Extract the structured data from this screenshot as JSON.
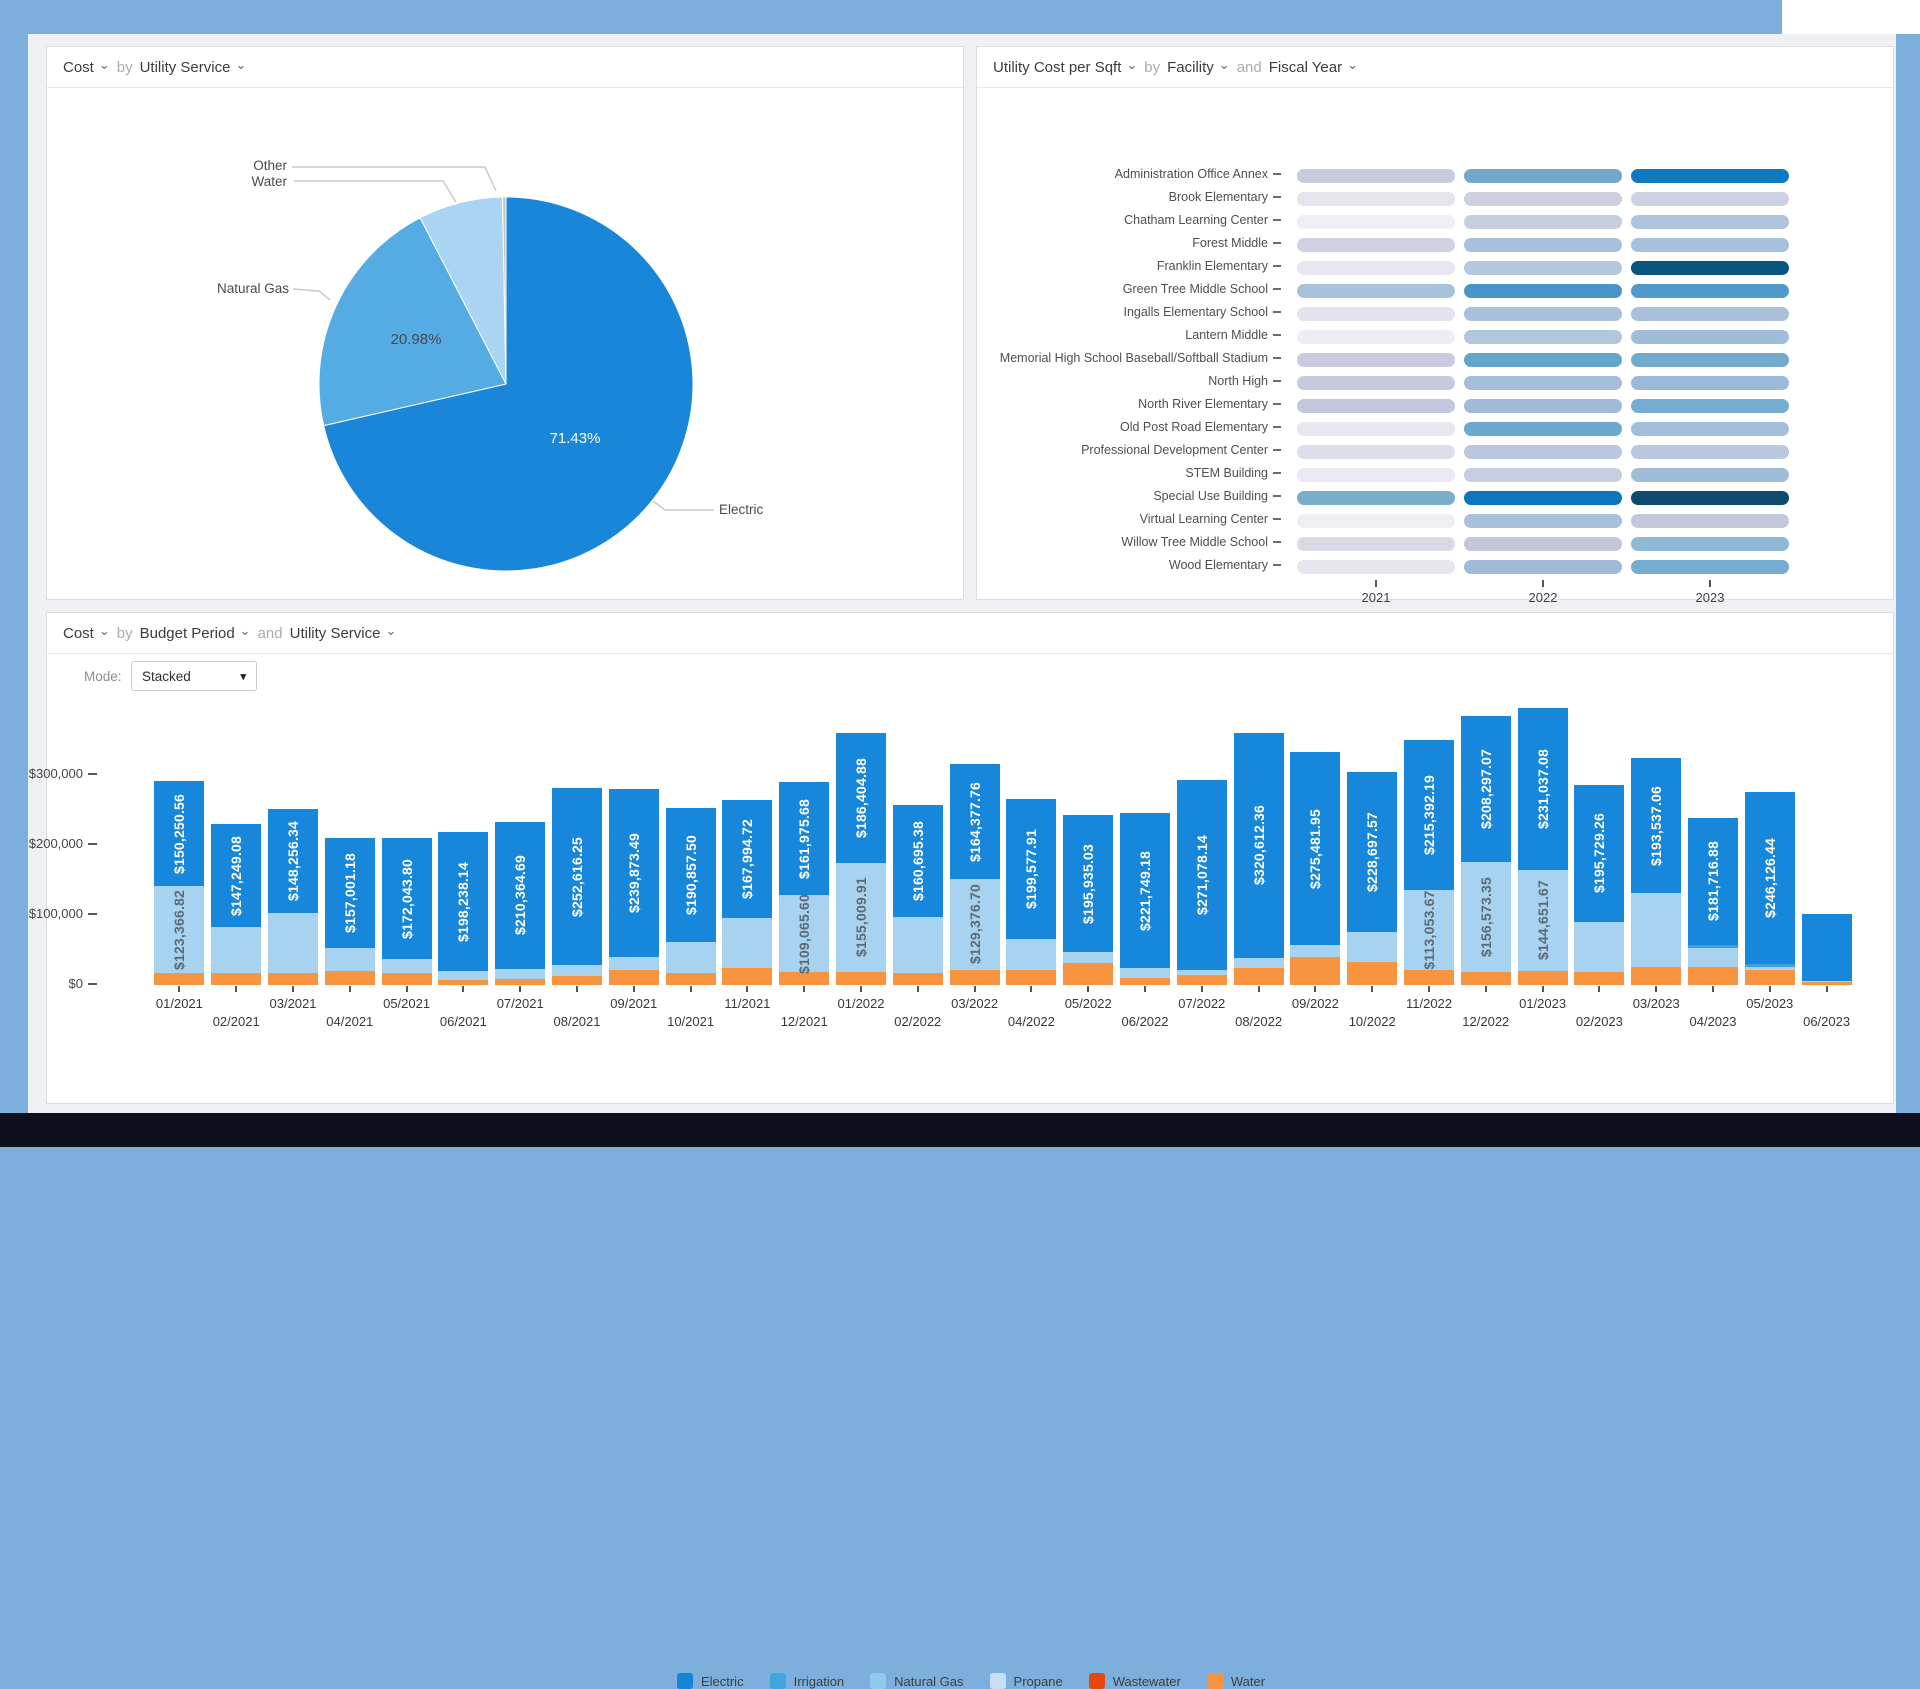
{
  "frame": {
    "background_color": "#7dafdc",
    "bottom_bar_color": "#0d0f1c"
  },
  "panel_pie": {
    "header": {
      "metric": "Cost",
      "by": "by",
      "dim": "Utility Service"
    },
    "labels": {
      "other": "Other",
      "water": "Water",
      "natural_gas": "Natural Gas",
      "electric": "Electric",
      "natural_gas_pct": "20.98%",
      "electric_pct": "71.43%"
    },
    "chart_data": {
      "type": "pie",
      "title": "Cost by Utility Service",
      "slices": [
        {
          "label": "Electric",
          "pct": 71.43,
          "pct_label": "71.43%",
          "color": "#1a86d9"
        },
        {
          "label": "Natural Gas",
          "pct": 20.98,
          "pct_label": "20.98%",
          "color": "#55abe4"
        },
        {
          "label": "Water",
          "pct": 7.29,
          "color": "#a9d5f3"
        },
        {
          "label": "Other",
          "pct": 0.3,
          "color": "#cbc5bc"
        }
      ],
      "start_angle_deg": 0,
      "direction": "clockwise"
    }
  },
  "panel_heatmap": {
    "header": {
      "metric": "Utility Cost per Sqft",
      "by": "by",
      "dim1": "Facility",
      "and": "and",
      "dim2": "Fiscal Year"
    },
    "chart_data": {
      "type": "heatmap",
      "columns": [
        "2021",
        "2022",
        "2023"
      ],
      "value_encoding": "color intensity (light lavender = low cost per sqft, dark blue = high)",
      "rows": [
        {
          "name": "Administration Office Annex",
          "colors": [
            "#c7cadd",
            "#6fa8c9",
            "#0f7ac2"
          ]
        },
        {
          "name": "Brook Elementary",
          "colors": [
            "#e3e4ee",
            "#ccd0e1",
            "#ccd1e3"
          ]
        },
        {
          "name": "Chatham Learning Center",
          "colors": [
            "#eeeef5",
            "#c5cedf",
            "#aec3dc"
          ]
        },
        {
          "name": "Forest Middle",
          "colors": [
            "#ced1e2",
            "#a7c0dc",
            "#a7c0dc"
          ]
        },
        {
          "name": "Franklin Elementary",
          "colors": [
            "#e7e7f1",
            "#b3c7de",
            "#0a5580"
          ]
        },
        {
          "name": "Green Tree Middle School",
          "colors": [
            "#a9c3dc",
            "#4896c9",
            "#4f9aca"
          ]
        },
        {
          "name": "Ingalls Elementary School",
          "colors": [
            "#e2e3ee",
            "#a8c0da",
            "#a8c0da"
          ]
        },
        {
          "name": "Lantern Middle",
          "colors": [
            "#ededf4",
            "#b0c6dd",
            "#9fbdd9"
          ]
        },
        {
          "name": "Memorial High School Baseball/Softball Stadium",
          "colors": [
            "#c8cbdf",
            "#61a5cd",
            "#71aacd"
          ]
        },
        {
          "name": "North High",
          "colors": [
            "#c6cade",
            "#a3bedb",
            "#9bb9d8"
          ]
        },
        {
          "name": "North River Elementary",
          "colors": [
            "#c2c7dc",
            "#9fbbd9",
            "#74add0"
          ]
        },
        {
          "name": "Old Post Road Elementary",
          "colors": [
            "#e8e8f2",
            "#6ca9cf",
            "#a3bedb"
          ]
        },
        {
          "name": "Professional Development Center",
          "colors": [
            "#dcdeea",
            "#b9c8de",
            "#b9c8de"
          ]
        },
        {
          "name": "STEM Building",
          "colors": [
            "#e9e9f3",
            "#c9cde0",
            "#9fbdd9"
          ]
        },
        {
          "name": "Special Use Building",
          "colors": [
            "#7aaecd",
            "#0b76bc",
            "#0c4a70"
          ]
        },
        {
          "name": "Virtual Learning Center",
          "colors": [
            "#eeeef5",
            "#a8c0da",
            "#c2c8dc"
          ]
        },
        {
          "name": "Willow Tree Middle School",
          "colors": [
            "#d8dae8",
            "#c2c8dc",
            "#8fb7d6"
          ]
        },
        {
          "name": "Wood Elementary",
          "colors": [
            "#e6e6f0",
            "#9fbbd9",
            "#74add0"
          ]
        }
      ]
    }
  },
  "panel_bars": {
    "header": {
      "metric": "Cost",
      "by": "by",
      "dim1": "Budget Period",
      "and": "and",
      "dim2": "Utility Service"
    },
    "mode": {
      "label": "Mode:",
      "value": "Stacked"
    },
    "y_ticks": [
      {
        "label": "$0",
        "value": 0
      },
      {
        "label": "$100,000",
        "value": 100000
      },
      {
        "label": "$200,000",
        "value": 200000
      },
      {
        "label": "$300,000",
        "value": 300000
      }
    ],
    "legend": [
      {
        "label": "Electric",
        "color": "#1483d8"
      },
      {
        "label": "Irrigation",
        "color": "#42a5e0"
      },
      {
        "label": "Natural Gas",
        "color": "#8fcaee"
      },
      {
        "label": "Propane",
        "color": "#c7def5"
      },
      {
        "label": "Wastewater",
        "color": "#e5490d"
      },
      {
        "label": "Water",
        "color": "#f89440"
      }
    ],
    "chart_data": {
      "type": "stacked-bar",
      "stack_order_bottom_to_top": [
        "water",
        "natural_gas",
        "irrigation",
        "electric"
      ],
      "series_colors": {
        "electric": "#1787dc",
        "irrigation": "#3f9fdf",
        "natural_gas": "#a8d3f0",
        "water": "#f89440"
      },
      "note": "electric and labeled natural_gas values are exact from on-bar labels; other segment values estimated from pixel heights",
      "bars": [
        {
          "month": "01/2021",
          "water": 17500,
          "natural_gas": 123366.82,
          "electric": 150250.56,
          "electric_label": "$150,250.56",
          "ng_label": "$123,366.82"
        },
        {
          "month": "02/2021",
          "water": 16500,
          "natural_gas": 66000,
          "electric": 147249.08,
          "electric_label": "$147,249.08"
        },
        {
          "month": "03/2021",
          "water": 17500,
          "natural_gas": 85500,
          "electric": 148256.34,
          "electric_label": "$148,256.34"
        },
        {
          "month": "04/2021",
          "water": 19500,
          "natural_gas": 34000,
          "electric": 157001.18,
          "electric_label": "$157,001.18"
        },
        {
          "month": "05/2021",
          "water": 16500,
          "natural_gas": 21000,
          "electric": 172043.8,
          "electric_label": "$172,043.80"
        },
        {
          "month": "06/2021",
          "water": 7500,
          "natural_gas": 12500,
          "electric": 198238.14,
          "electric_label": "$198,238.14"
        },
        {
          "month": "07/2021",
          "water": 8500,
          "natural_gas": 14500,
          "electric": 210364.69,
          "electric_label": "$210,364.69"
        },
        {
          "month": "08/2021",
          "water": 13000,
          "natural_gas": 15500,
          "electric": 252616.25,
          "electric_label": "$252,616.25"
        },
        {
          "month": "09/2021",
          "water": 21000,
          "natural_gas": 19000,
          "electric": 239873.49,
          "electric_label": "$239,873.49"
        },
        {
          "month": "10/2021",
          "water": 17000,
          "natural_gas": 45000,
          "electric": 190857.5,
          "electric_label": "$190,857.50"
        },
        {
          "month": "11/2021",
          "water": 24000,
          "natural_gas": 72000,
          "electric": 167994.72,
          "electric_label": "$167,994.72"
        },
        {
          "month": "12/2021",
          "water": 19000,
          "natural_gas": 109065.6,
          "electric": 161975.68,
          "electric_label": "$161,975.68",
          "ng_label": "$109,065.60"
        },
        {
          "month": "01/2022",
          "water": 19000,
          "natural_gas": 155009.91,
          "electric": 186404.88,
          "electric_label": "$186,404.88",
          "ng_label": "$155,009.91"
        },
        {
          "month": "02/2022",
          "water": 17000,
          "natural_gas": 80000,
          "electric": 160695.38,
          "electric_label": "$160,695.38"
        },
        {
          "month": "03/2022",
          "water": 22000,
          "natural_gas": 129376.7,
          "electric": 164377.76,
          "electric_label": "$164,377.76",
          "ng_label": "$129,376.70"
        },
        {
          "month": "04/2022",
          "water": 21000,
          "natural_gas": 45000,
          "electric": 199577.91,
          "electric_label": "$199,577.91"
        },
        {
          "month": "05/2022",
          "water": 31000,
          "natural_gas": 16000,
          "electric": 195935.03,
          "electric_label": "$195,935.03"
        },
        {
          "month": "06/2022",
          "water": 10000,
          "natural_gas": 14000,
          "electric": 221749.18,
          "electric_label": "$221,749.18"
        },
        {
          "month": "07/2022",
          "water": 14000,
          "natural_gas": 8000,
          "electric": 271078.14,
          "electric_label": "$271,078.14"
        },
        {
          "month": "08/2022",
          "water": 24000,
          "natural_gas": 15000,
          "electric": 320612.36,
          "electric_label": "$320,612.36"
        },
        {
          "month": "09/2022",
          "water": 40000,
          "natural_gas": 17000,
          "electric": 275481.95,
          "electric_label": "$275,481.95"
        },
        {
          "month": "10/2022",
          "water": 33000,
          "natural_gas": 43000,
          "electric": 228697.57,
          "electric_label": "$228,697.57"
        },
        {
          "month": "11/2022",
          "water": 22000,
          "natural_gas": 113053.67,
          "electric": 215392.19,
          "electric_label": "$215,392.19",
          "ng_label": "$113,053.67"
        },
        {
          "month": "12/2022",
          "water": 19000,
          "natural_gas": 156573.35,
          "electric": 208297.07,
          "electric_label": "$208,297.07",
          "ng_label": "$156,573.35"
        },
        {
          "month": "01/2023",
          "water": 20000,
          "natural_gas": 144651.67,
          "electric": 231037.08,
          "electric_label": "$231,037.08",
          "ng_label": "$144,651.67"
        },
        {
          "month": "02/2023",
          "water": 19000,
          "natural_gas": 71000,
          "electric": 195729.26,
          "electric_label": "$195,729.26"
        },
        {
          "month": "03/2023",
          "water": 26000,
          "natural_gas": 105000,
          "electric": 193537.06,
          "electric_label": "$193,537.06"
        },
        {
          "month": "04/2023",
          "water": 26000,
          "irrigation": 4000,
          "natural_gas": 27000,
          "electric": 181716.88,
          "electric_label": "$181,716.88"
        },
        {
          "month": "05/2023",
          "water": 21000,
          "irrigation": 4000,
          "natural_gas": 5000,
          "electric": 246126.44,
          "electric_label": "$246,126.44"
        },
        {
          "month": "06/2023",
          "water": 4000,
          "natural_gas": 2000,
          "electric": 95000
        }
      ]
    }
  }
}
